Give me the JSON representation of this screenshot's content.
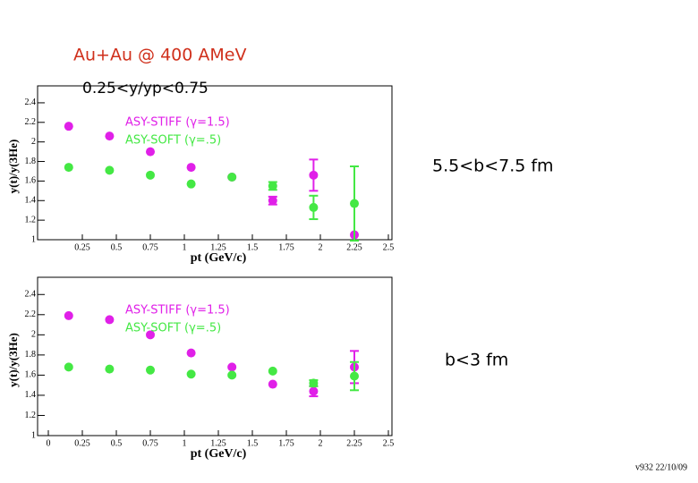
{
  "slide": {
    "title": "Au+Au @ 400 AMeV",
    "subtitle": "0.25<y/yp<0.75",
    "footer": "v932 22/10/09"
  },
  "chart_data": [
    {
      "type": "scatter",
      "annotation": "5.5<b<7.5 fm",
      "x_label": "pt (GeV/c)",
      "y_label": "y(t)/y(3He)",
      "xlim": [
        0,
        2.5
      ],
      "xticks": [
        0.25,
        0.5,
        0.75,
        1,
        1.25,
        1.5,
        1.75,
        2,
        2.25,
        2.5
      ],
      "ylim": [
        1,
        2.5
      ],
      "yticks": [
        1,
        1.2,
        1.4,
        1.6,
        1.8,
        2,
        2.2,
        2.4
      ],
      "x": [
        0.15,
        0.45,
        0.75,
        1.05,
        1.35,
        1.65,
        1.95,
        2.25
      ],
      "series": [
        {
          "name": "ASY-STIFF (γ=1.5)",
          "color": "#e020e8",
          "values": [
            2.16,
            2.06,
            1.9,
            1.74,
            1.64,
            1.4,
            1.66,
            1.05
          ],
          "errors": [
            0,
            0,
            0,
            0,
            0,
            0.04,
            0.16,
            0
          ]
        },
        {
          "name": "ASY-SOFT (γ=.5)",
          "color": "#44e844",
          "values": [
            1.74,
            1.71,
            1.66,
            1.57,
            1.64,
            1.55,
            1.33,
            1.37
          ],
          "errors": [
            0,
            0,
            0,
            0,
            0,
            0.04,
            0.12,
            0.38
          ]
        }
      ]
    },
    {
      "type": "scatter",
      "annotation": "b<3 fm",
      "x_label": "pt (GeV/c)",
      "y_label": "y(t)/y(3He)",
      "xlim": [
        0,
        2.5
      ],
      "xticks": [
        0,
        0.25,
        0.5,
        0.75,
        1,
        1.25,
        1.5,
        1.75,
        2,
        2.25,
        2.5
      ],
      "ylim": [
        1,
        2.5
      ],
      "yticks": [
        1,
        1.2,
        1.4,
        1.6,
        1.8,
        2,
        2.2,
        2.4
      ],
      "x": [
        0.15,
        0.45,
        0.75,
        1.05,
        1.35,
        1.65,
        1.95,
        2.25
      ],
      "series": [
        {
          "name": "ASY-STIFF (γ=1.5)",
          "color": "#e020e8",
          "values": [
            2.19,
            2.15,
            2.0,
            1.82,
            1.68,
            1.51,
            1.44,
            1.68
          ],
          "errors": [
            0,
            0,
            0,
            0,
            0,
            0,
            0.05,
            0.16
          ]
        },
        {
          "name": "ASY-SOFT (γ=.5)",
          "color": "#44e844",
          "values": [
            1.68,
            1.66,
            1.65,
            1.61,
            1.6,
            1.64,
            1.52,
            1.59
          ],
          "errors": [
            0,
            0,
            0,
            0,
            0,
            0,
            0.03,
            0.14
          ]
        }
      ]
    }
  ]
}
